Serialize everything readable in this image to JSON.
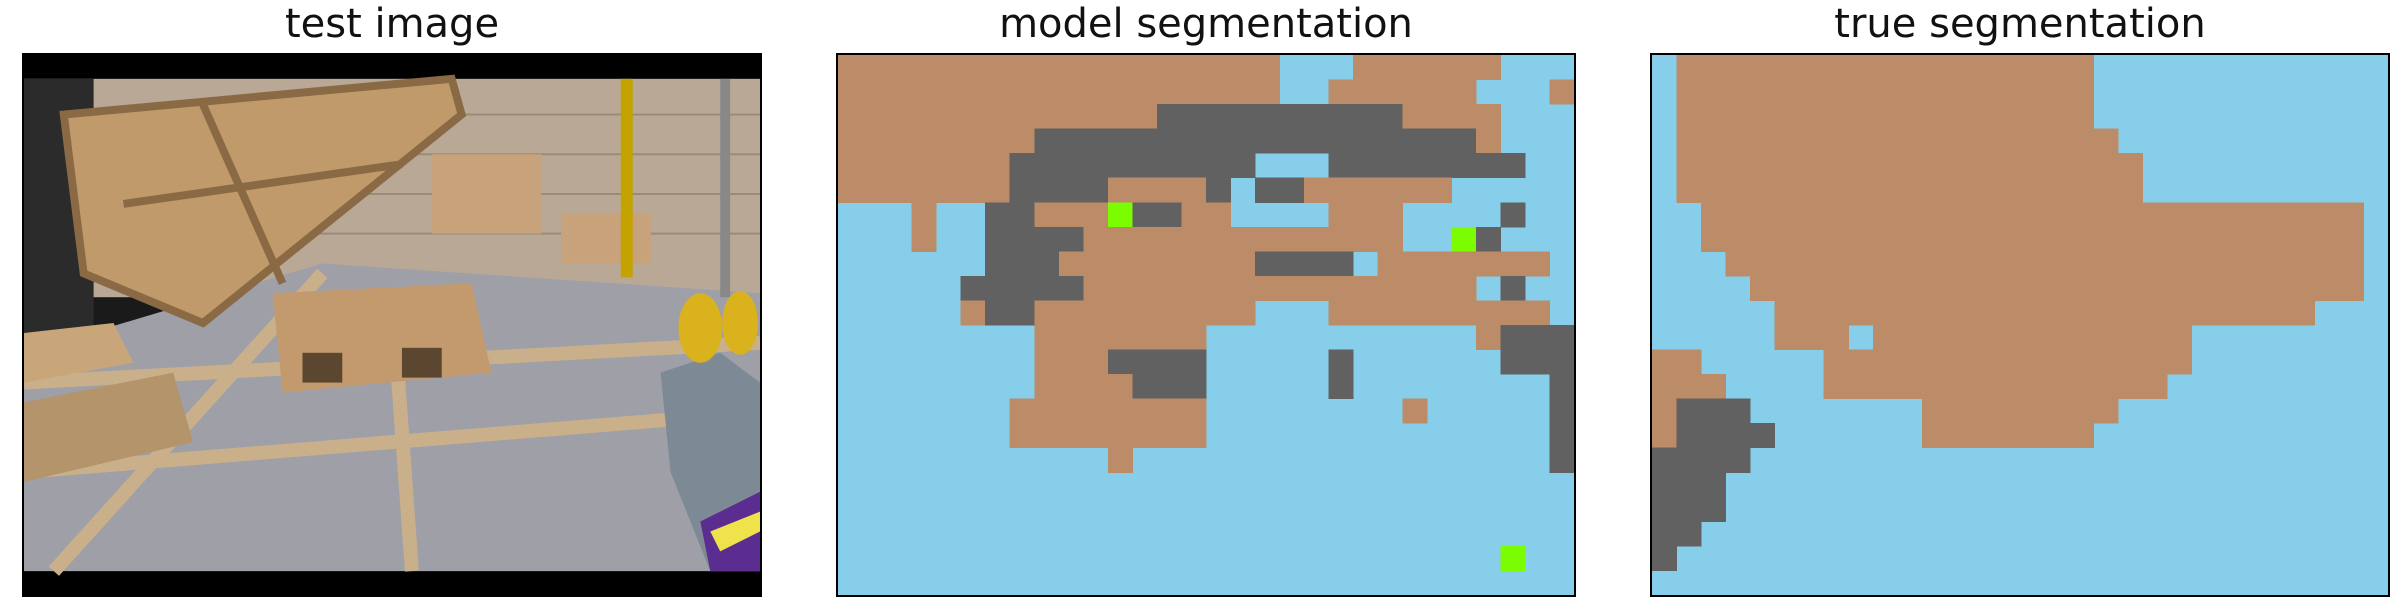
{
  "figure": {
    "panels": [
      {
        "title": "test image"
      },
      {
        "title": "model segmentation"
      },
      {
        "title": "true segmentation"
      }
    ]
  },
  "colors": {
    "background": "#87ceeb",
    "brown_class": "#bb8c67",
    "gray_class": "#616161",
    "green_class": "#7cfc00",
    "letterbox": "#000000"
  },
  "grids": {
    "cols": 30,
    "rows": 22,
    "legend": "0=sky-blue, 1=brown, 2=gray, 3=green",
    "model": [
      "111111111111111111000111111000",
      "111111111111111111001111110001",
      "111111111111122222222221111000",
      "111111112222222222222222221000",
      "111111122222222220002222222200",
      "111111122221111202211111100000",
      "000100221113221100001110000200",
      "000100222211111111111110032000",
      "000000222111111112222011111110",
      "000002222211111111111111110200",
      "000001221111111110001111111110",
      "000000001111111000000000001222",
      "000000001112222000002000000222",
      "000000001111222000002000000002",
      "000000011111111000000001000002",
      "000000011111111000000000000002",
      "000000000001000000000000000002",
      "000000000000000000000000000000",
      "000000000000000000000000000000",
      "000000000000000000000000000000",
      "000000000000000000000000000300",
      "000000000000000000000000000000"
    ],
    "true": [
      "011111111111111111000000000000",
      "011111111111111111000000000000",
      "011111111111111111000000000000",
      "011111111111111111100000000000",
      "011111111111111111110000000000",
      "011111111111111111110000000000",
      "001111111111111111111111111110",
      "001111111111111111111111111110",
      "000111111111111111111111111110",
      "000011111111111111111111111110",
      "000001111111111111111111111000",
      "000001110111111111111100000000",
      "110000011111111111111100000000",
      "111000011111111111111000000000",
      "122200000001111111100000000000",
      "122220000001111111000000000000",
      "222200000000000000000000000000",
      "222000000000000000000000000000",
      "222000000000000000000000000000",
      "220000000000000000000000000000",
      "200000000000000000000000000000",
      "000000000000000000000000000000"
    ]
  }
}
